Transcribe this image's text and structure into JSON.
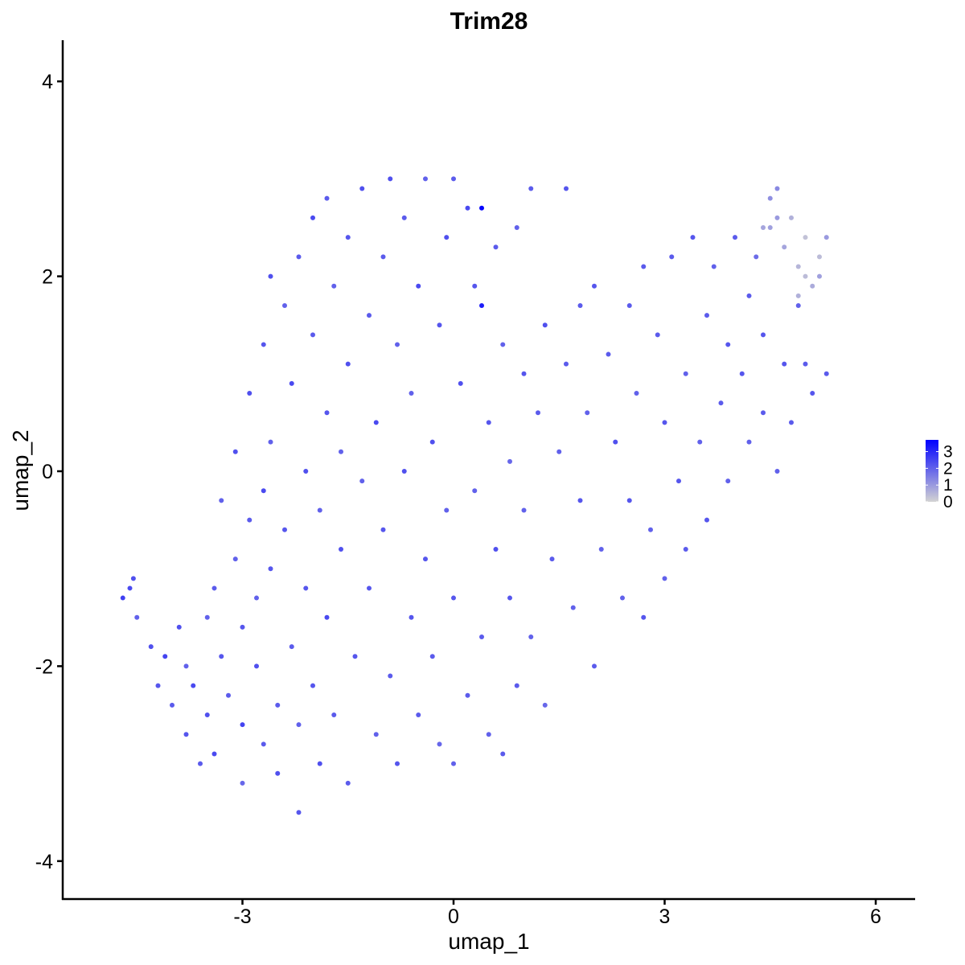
{
  "chart_data": {
    "type": "scatter",
    "title": "Trim28",
    "xlabel": "umap_1",
    "ylabel": "umap_2",
    "xlim": [
      -5.7,
      6.5
    ],
    "ylim": [
      -4.4,
      4.4
    ],
    "xticks": [
      -3,
      0,
      3,
      6
    ],
    "yticks": [
      -4,
      -2,
      0,
      2,
      4
    ],
    "grid": false,
    "legend": {
      "placement": "right",
      "type": "colorbar",
      "ticks": [
        0,
        1,
        2,
        3
      ],
      "range": [
        0,
        3.7
      ],
      "low_color": "#D3D3D3",
      "high_color": "#0000FF"
    },
    "points": [
      [
        -4.7,
        -1.3,
        2.6
      ],
      [
        -4.6,
        -1.2,
        2.4
      ],
      [
        -4.55,
        -1.1,
        2.3
      ],
      [
        -4.5,
        -1.5,
        2.0
      ],
      [
        -4.3,
        -1.8,
        2.3
      ],
      [
        -4.2,
        -2.2,
        2.2
      ],
      [
        -4.1,
        -1.9,
        2.5
      ],
      [
        -4.0,
        -2.4,
        2.1
      ],
      [
        -3.9,
        -1.6,
        2.3
      ],
      [
        -3.8,
        -2.0,
        2.0
      ],
      [
        -3.8,
        -2.7,
        2.2
      ],
      [
        -3.7,
        -2.2,
        2.4
      ],
      [
        -3.6,
        -3.0,
        2.1
      ],
      [
        -3.5,
        -1.5,
        2.0
      ],
      [
        -3.5,
        -2.5,
        2.3
      ],
      [
        -3.4,
        -1.2,
        2.1
      ],
      [
        -3.4,
        -2.9,
        2.4
      ],
      [
        -3.3,
        -0.3,
        2.0
      ],
      [
        -3.3,
        -1.9,
        2.2
      ],
      [
        -3.2,
        -2.3,
        2.1
      ],
      [
        -3.1,
        0.2,
        2.3
      ],
      [
        -3.1,
        -0.9,
        2.0
      ],
      [
        -3.0,
        -1.6,
        2.2
      ],
      [
        -3.0,
        -2.6,
        2.5
      ],
      [
        -3.0,
        -3.2,
        1.9
      ],
      [
        -2.9,
        -0.5,
        2.1
      ],
      [
        -2.9,
        0.8,
        2.3
      ],
      [
        -2.8,
        -1.3,
        2.0
      ],
      [
        -2.8,
        -2.0,
        2.3
      ],
      [
        -2.7,
        1.3,
        2.2
      ],
      [
        -2.7,
        -2.8,
        2.1
      ],
      [
        -2.7,
        -0.2,
        2.4
      ],
      [
        -2.6,
        0.3,
        2.0
      ],
      [
        -2.6,
        -1.0,
        2.2
      ],
      [
        -2.6,
        2.0,
        2.3
      ],
      [
        -2.5,
        -2.4,
        2.1
      ],
      [
        -2.5,
        -3.1,
        2.3
      ],
      [
        -2.4,
        1.7,
        2.0
      ],
      [
        -2.4,
        -0.6,
        2.2
      ],
      [
        -2.3,
        -1.8,
        2.1
      ],
      [
        -2.3,
        0.9,
        2.4
      ],
      [
        -2.2,
        -3.5,
        2.2
      ],
      [
        -2.2,
        2.2,
        2.1
      ],
      [
        -2.2,
        -2.6,
        2.0
      ],
      [
        -2.1,
        0.0,
        2.3
      ],
      [
        -2.1,
        -1.2,
        2.2
      ],
      [
        -2.0,
        2.6,
        2.4
      ],
      [
        -2.0,
        1.4,
        2.1
      ],
      [
        -2.0,
        -2.2,
        2.2
      ],
      [
        -1.9,
        -0.4,
        2.0
      ],
      [
        -1.9,
        -3.0,
        2.3
      ],
      [
        -1.8,
        0.6,
        2.2
      ],
      [
        -1.8,
        2.8,
        2.1
      ],
      [
        -1.8,
        -1.5,
        2.4
      ],
      [
        -1.7,
        1.9,
        2.0
      ],
      [
        -1.7,
        -2.5,
        2.1
      ],
      [
        -1.6,
        -0.8,
        2.3
      ],
      [
        -1.6,
        0.2,
        2.0
      ],
      [
        -1.5,
        2.4,
        2.2
      ],
      [
        -1.5,
        -3.2,
        2.1
      ],
      [
        -1.5,
        1.1,
        2.3
      ],
      [
        -1.4,
        -1.9,
        2.2
      ],
      [
        -1.3,
        -0.1,
        2.0
      ],
      [
        -1.3,
        2.9,
        2.3
      ],
      [
        -1.2,
        1.6,
        2.1
      ],
      [
        -1.2,
        -1.2,
        2.2
      ],
      [
        -1.1,
        -2.7,
        2.0
      ],
      [
        -1.1,
        0.5,
        2.4
      ],
      [
        -1.0,
        2.2,
        2.1
      ],
      [
        -1.0,
        -0.6,
        2.2
      ],
      [
        -0.9,
        3.0,
        2.3
      ],
      [
        -0.9,
        -2.1,
        2.1
      ],
      [
        -0.8,
        1.3,
        2.0
      ],
      [
        -0.8,
        -3.0,
        2.2
      ],
      [
        -0.7,
        0.0,
        2.3
      ],
      [
        -0.7,
        2.6,
        2.1
      ],
      [
        -0.6,
        -1.5,
        2.2
      ],
      [
        -0.6,
        0.8,
        2.0
      ],
      [
        -0.5,
        1.9,
        2.4
      ],
      [
        -0.5,
        -2.5,
        2.1
      ],
      [
        -0.4,
        -0.9,
        2.2
      ],
      [
        -0.4,
        3.0,
        2.0
      ],
      [
        -0.3,
        0.3,
        2.3
      ],
      [
        -0.3,
        -1.9,
        2.1
      ],
      [
        -0.2,
        1.5,
        2.2
      ],
      [
        -0.2,
        -2.8,
        1.9
      ],
      [
        -0.1,
        2.4,
        2.3
      ],
      [
        -0.1,
        -0.4,
        2.0
      ],
      [
        0.0,
        3.0,
        2.1
      ],
      [
        0.0,
        -1.3,
        2.2
      ],
      [
        0.0,
        -3.0,
        2.0
      ],
      [
        0.1,
        0.9,
        2.3
      ],
      [
        0.2,
        2.7,
        2.4
      ],
      [
        0.2,
        -2.3,
        2.1
      ],
      [
        0.3,
        -0.2,
        2.0
      ],
      [
        0.3,
        1.9,
        2.2
      ],
      [
        0.4,
        2.7,
        3.6
      ],
      [
        0.4,
        1.7,
        3.2
      ],
      [
        0.4,
        -1.7,
        2.1
      ],
      [
        0.5,
        -2.7,
        2.0
      ],
      [
        0.5,
        0.5,
        2.2
      ],
      [
        0.6,
        2.3,
        2.1
      ],
      [
        0.6,
        -0.8,
        2.3
      ],
      [
        0.7,
        1.3,
        2.0
      ],
      [
        0.7,
        -2.9,
        2.1
      ],
      [
        0.8,
        -1.3,
        2.2
      ],
      [
        0.8,
        0.1,
        1.9
      ],
      [
        0.9,
        2.5,
        2.0
      ],
      [
        0.9,
        -2.2,
        2.1
      ],
      [
        1.0,
        1.0,
        2.2
      ],
      [
        1.0,
        -0.4,
        2.0
      ],
      [
        1.1,
        2.9,
        2.1
      ],
      [
        1.1,
        -1.7,
        2.0
      ],
      [
        1.2,
        0.6,
        2.1
      ],
      [
        1.3,
        1.5,
        2.3
      ],
      [
        1.3,
        -2.4,
        1.9
      ],
      [
        1.4,
        -0.9,
        2.1
      ],
      [
        1.5,
        0.2,
        2.0
      ],
      [
        1.6,
        2.9,
        2.2
      ],
      [
        1.6,
        1.1,
        2.1
      ],
      [
        1.7,
        -1.4,
        2.0
      ],
      [
        1.8,
        -0.3,
        2.2
      ],
      [
        1.8,
        1.7,
        2.1
      ],
      [
        1.9,
        0.6,
        2.0
      ],
      [
        2.0,
        -2.0,
        2.1
      ],
      [
        2.0,
        1.9,
        2.2
      ],
      [
        2.1,
        -0.8,
        2.0
      ],
      [
        2.2,
        1.2,
        2.1
      ],
      [
        2.3,
        0.3,
        2.3
      ],
      [
        2.4,
        -1.3,
        2.0
      ],
      [
        2.5,
        1.7,
        2.1
      ],
      [
        2.5,
        -0.3,
        2.2
      ],
      [
        2.6,
        0.8,
        2.0
      ],
      [
        2.7,
        2.1,
        2.1
      ],
      [
        2.7,
        -1.5,
        2.2
      ],
      [
        2.8,
        -0.6,
        2.0
      ],
      [
        2.9,
        1.4,
        2.1
      ],
      [
        3.0,
        0.5,
        2.2
      ],
      [
        3.0,
        -1.1,
        2.0
      ],
      [
        3.1,
        2.2,
        2.1
      ],
      [
        3.2,
        -0.1,
        2.2
      ],
      [
        3.3,
        1.0,
        2.0
      ],
      [
        3.3,
        -0.8,
        2.1
      ],
      [
        3.4,
        2.4,
        2.2
      ],
      [
        3.5,
        0.3,
        2.0
      ],
      [
        3.6,
        1.6,
        2.1
      ],
      [
        3.6,
        -0.5,
        2.2
      ],
      [
        3.7,
        2.1,
        2.0
      ],
      [
        3.8,
        0.7,
        2.1
      ],
      [
        3.9,
        1.3,
        2.2
      ],
      [
        3.9,
        -0.1,
        2.0
      ],
      [
        4.0,
        2.4,
        2.1
      ],
      [
        4.1,
        1.0,
        2.2
      ],
      [
        4.2,
        0.3,
        2.0
      ],
      [
        4.2,
        1.8,
        2.1
      ],
      [
        4.3,
        2.2,
        1.8
      ],
      [
        4.4,
        0.6,
        2.1
      ],
      [
        4.4,
        1.4,
        2.2
      ],
      [
        4.5,
        2.8,
        1.2
      ],
      [
        4.5,
        2.5,
        0.9
      ],
      [
        4.6,
        0.0,
        2.0
      ],
      [
        4.6,
        2.9,
        1.3
      ],
      [
        4.7,
        1.1,
        2.2
      ],
      [
        4.7,
        2.3,
        0.8
      ],
      [
        4.8,
        2.6,
        0.6
      ],
      [
        4.8,
        0.5,
        2.1
      ],
      [
        4.9,
        1.7,
        2.0
      ],
      [
        4.9,
        2.1,
        0.5
      ],
      [
        5.0,
        2.4,
        0.3
      ],
      [
        5.0,
        1.1,
        2.1
      ],
      [
        5.1,
        1.9,
        0.7
      ],
      [
        5.1,
        0.8,
        2.2
      ],
      [
        5.2,
        2.2,
        0.4
      ],
      [
        5.2,
        2.0,
        0.9
      ],
      [
        5.3,
        2.4,
        1.0
      ],
      [
        5.3,
        1.0,
        2.1
      ],
      [
        4.9,
        1.8,
        0.6
      ],
      [
        5.0,
        2.0,
        0.4
      ],
      [
        4.6,
        2.6,
        1.0
      ],
      [
        4.4,
        2.5,
        0.8
      ]
    ]
  }
}
